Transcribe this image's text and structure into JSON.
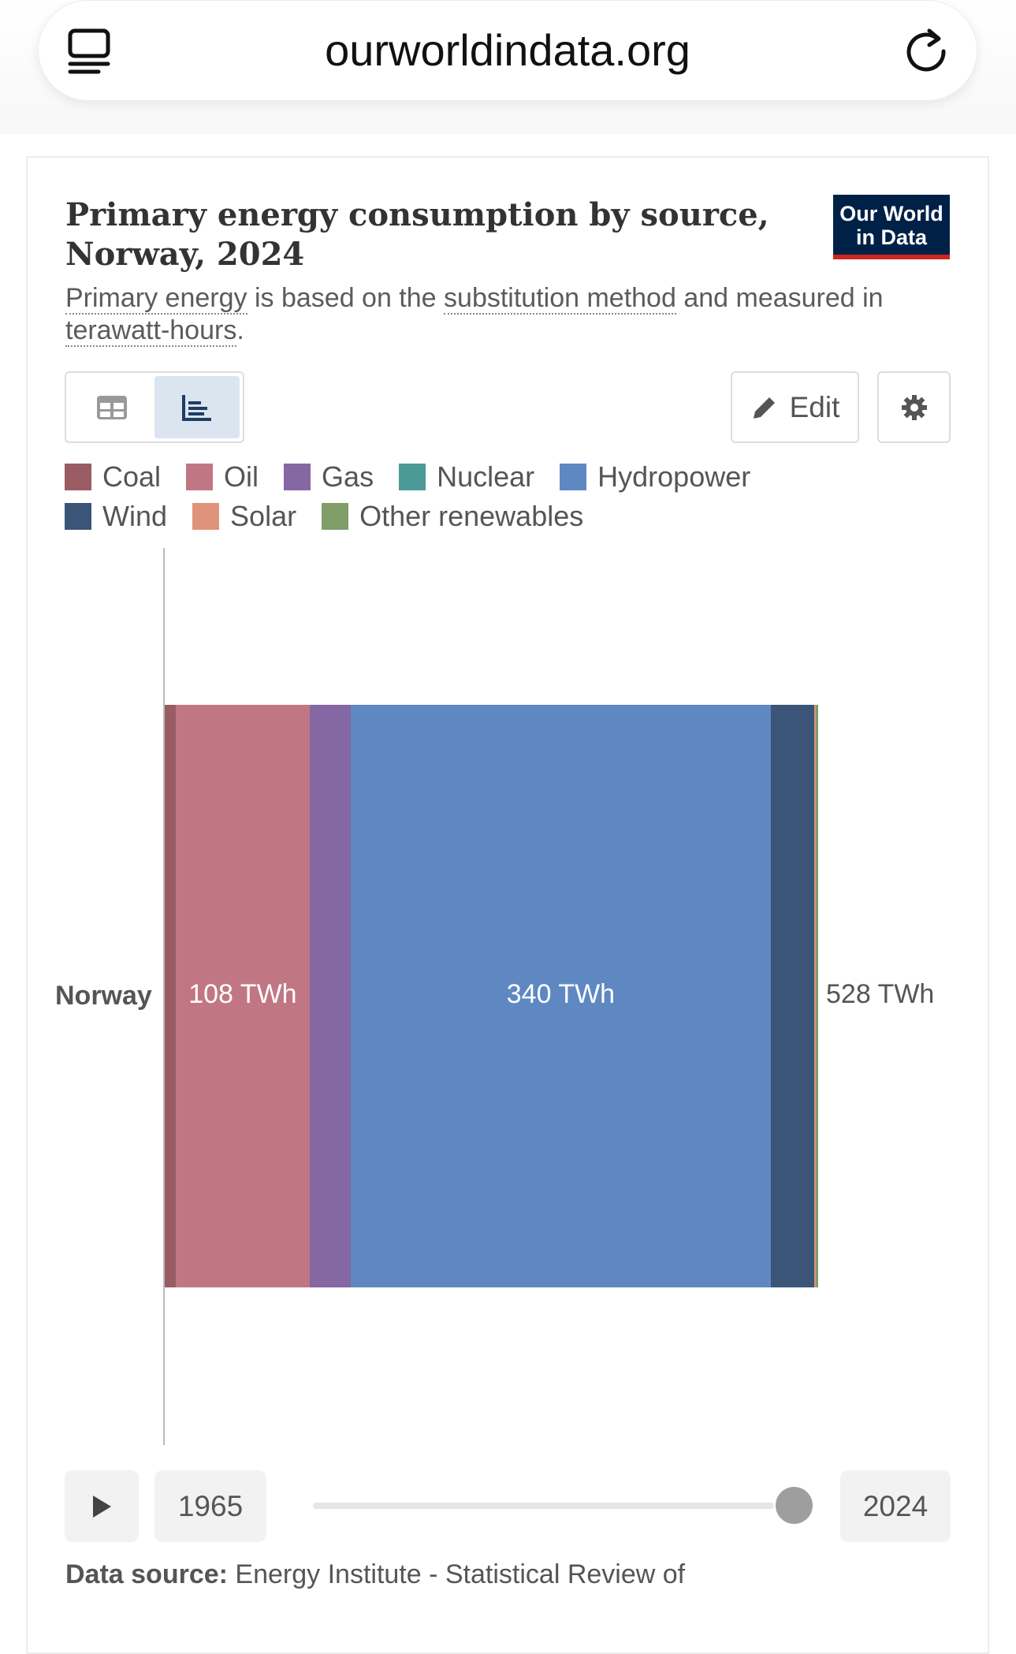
{
  "browser": {
    "url": "ourworldindata.org"
  },
  "header": {
    "title": "Primary energy consumption by source, Norway, 2024",
    "logo_text": "Our World in Data",
    "subtitle_parts": {
      "link1": "Primary energy",
      "t1": " is based on the ",
      "link2": "substitution method",
      "t2": " and measured in ",
      "link3": "terawatt-hours",
      "t3": "."
    }
  },
  "toolbar": {
    "edit_label": "Edit"
  },
  "timeline": {
    "start": "1965",
    "end": "2024",
    "position": 1.0
  },
  "footer": {
    "source_label": "Data source:",
    "source_text": " Energy Institute - Statistical Review of"
  },
  "chart_data": {
    "type": "bar",
    "orientation": "horizontal-stacked",
    "title": "Primary energy consumption by source, Norway, 2024",
    "unit": "TWh",
    "categories": [
      "Norway"
    ],
    "total_label": "528 TWh",
    "series": [
      {
        "name": "Coal",
        "color": "#9a5c63",
        "values": [
          9
        ]
      },
      {
        "name": "Oil",
        "color": "#c17783",
        "values": [
          108
        ],
        "label": "108 TWh"
      },
      {
        "name": "Gas",
        "color": "#8467a3",
        "values": [
          33
        ]
      },
      {
        "name": "Nuclear",
        "color": "#4c9a97",
        "values": [
          0
        ]
      },
      {
        "name": "Hydropower",
        "color": "#5f88c3",
        "values": [
          340
        ],
        "label": "340 TWh"
      },
      {
        "name": "Wind",
        "color": "#3a5578",
        "values": [
          35
        ]
      },
      {
        "name": "Solar",
        "color": "#e0937b",
        "values": [
          1
        ]
      },
      {
        "name": "Other renewables",
        "color": "#7f9e6a",
        "values": [
          2
        ]
      }
    ],
    "xlim": [
      0,
      528
    ]
  }
}
